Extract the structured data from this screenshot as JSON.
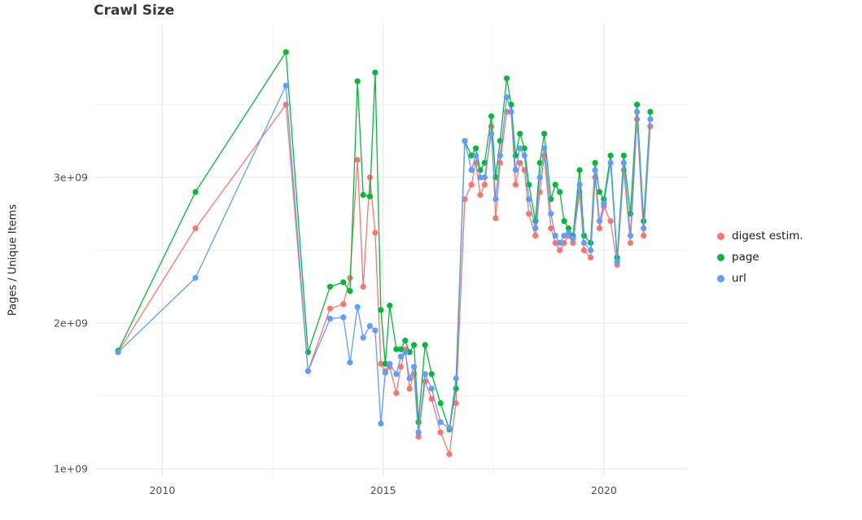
{
  "chart_data": {
    "type": "line",
    "title": "Crawl Size",
    "xlabel": "",
    "ylabel": "Pages / Unique Items",
    "legend_position": "right",
    "grid": "major-and-minor",
    "xlim": [
      2008.5,
      2021.9
    ],
    "ylim": [
      950000000,
      4050000000
    ],
    "xticks": [
      2010,
      2015,
      2020
    ],
    "xtick_labels": [
      "2010",
      "2015",
      "2020"
    ],
    "xticks_minor": [
      2012.5,
      2017.5
    ],
    "yticks": [
      1000000000,
      2000000000,
      3000000000
    ],
    "ytick_labels": [
      "1e+09",
      "2e+09",
      "3e+09"
    ],
    "yticks_minor": [
      1500000000,
      2500000000,
      3500000000
    ],
    "x": [
      2009.0,
      2010.75,
      2012.8,
      2013.3,
      2013.8,
      2014.1,
      2014.25,
      2014.42,
      2014.55,
      2014.7,
      2014.82,
      2014.95,
      2015.05,
      2015.15,
      2015.3,
      2015.4,
      2015.5,
      2015.6,
      2015.7,
      2015.8,
      2015.95,
      2016.1,
      2016.3,
      2016.5,
      2016.65,
      2016.85,
      2017.0,
      2017.1,
      2017.2,
      2017.3,
      2017.45,
      2017.55,
      2017.65,
      2017.8,
      2017.9,
      2018.0,
      2018.1,
      2018.2,
      2018.3,
      2018.45,
      2018.55,
      2018.65,
      2018.8,
      2018.9,
      2019.0,
      2019.1,
      2019.2,
      2019.3,
      2019.45,
      2019.55,
      2019.7,
      2019.8,
      2019.9,
      2020.0,
      2020.15,
      2020.3,
      2020.45,
      2020.6,
      2020.75,
      2020.9,
      2021.05
    ],
    "series": [
      {
        "name": "digest estim.",
        "color": "#F8766D",
        "values": [
          1800000000.0,
          2650000000.0,
          3500000000.0,
          1670000000.0,
          2100000000.0,
          2130000000.0,
          2310000000.0,
          3120000000.0,
          2250000000.0,
          3000000000.0,
          2620000000.0,
          1720000000.0,
          1670000000.0,
          1700000000.0,
          1520000000.0,
          1700000000.0,
          1820000000.0,
          1550000000.0,
          1650000000.0,
          1220000000.0,
          1600000000.0,
          1480000000.0,
          1250000000.0,
          1100000000.0,
          1450000000.0,
          2850000000.0,
          2950000000.0,
          3100000000.0,
          2880000000.0,
          2950000000.0,
          3350000000.0,
          2720000000.0,
          3100000000.0,
          3450000000.0,
          3450000000.0,
          2950000000.0,
          3100000000.0,
          3050000000.0,
          2750000000.0,
          2600000000.0,
          2900000000.0,
          3150000000.0,
          2650000000.0,
          2550000000.0,
          2500000000.0,
          2550000000.0,
          2600000000.0,
          2550000000.0,
          2900000000.0,
          2500000000.0,
          2450000000.0,
          3000000000.0,
          2650000000.0,
          2800000000.0,
          2700000000.0,
          2400000000.0,
          3050000000.0,
          2550000000.0,
          3400000000.0,
          2600000000.0,
          3350000000.0
        ]
      },
      {
        "name": "page",
        "color": "#00BA38",
        "values": [
          1810000000.0,
          2900000000.0,
          3860000000.0,
          1800000000.0,
          2250000000.0,
          2280000000.0,
          2220000000.0,
          3660000000.0,
          2880000000.0,
          2870000000.0,
          3720000000.0,
          2090000000.0,
          1720000000.0,
          2120000000.0,
          1820000000.0,
          1820000000.0,
          1880000000.0,
          1800000000.0,
          1850000000.0,
          1320000000.0,
          1850000000.0,
          1650000000.0,
          1450000000.0,
          1270000000.0,
          1550000000.0,
          3250000000.0,
          3150000000.0,
          3200000000.0,
          3050000000.0,
          3100000000.0,
          3420000000.0,
          3000000000.0,
          3250000000.0,
          3680000000.0,
          3500000000.0,
          3150000000.0,
          3300000000.0,
          3200000000.0,
          2950000000.0,
          2700000000.0,
          3100000000.0,
          3300000000.0,
          2850000000.0,
          2950000000.0,
          2900000000.0,
          2700000000.0,
          2650000000.0,
          2600000000.0,
          3050000000.0,
          2600000000.0,
          2550000000.0,
          3100000000.0,
          2900000000.0,
          2850000000.0,
          3150000000.0,
          2450000000.0,
          3150000000.0,
          2750000000.0,
          3500000000.0,
          2700000000.0,
          3450000000.0
        ]
      },
      {
        "name": "url",
        "color": "#619CFF",
        "values": [
          1800000000.0,
          2310000000.0,
          3630000000.0,
          1670000000.0,
          2030000000.0,
          2040000000.0,
          1730000000.0,
          2110000000.0,
          1900000000.0,
          1980000000.0,
          1950000000.0,
          1310000000.0,
          1660000000.0,
          1720000000.0,
          1650000000.0,
          1770000000.0,
          1800000000.0,
          1620000000.0,
          1700000000.0,
          1250000000.0,
          1650000000.0,
          1550000000.0,
          1320000000.0,
          1280000000.0,
          1620000000.0,
          3250000000.0,
          3050000000.0,
          3150000000.0,
          3000000000.0,
          3000000000.0,
          3300000000.0,
          2850000000.0,
          3150000000.0,
          3550000000.0,
          3450000000.0,
          3050000000.0,
          3200000000.0,
          3150000000.0,
          2850000000.0,
          2650000000.0,
          3000000000.0,
          3200000000.0,
          2750000000.0,
          2600000000.0,
          2550000000.0,
          2600000000.0,
          2620000000.0,
          2580000000.0,
          2950000000.0,
          2550000000.0,
          2500000000.0,
          3050000000.0,
          2700000000.0,
          2820000000.0,
          3100000000.0,
          2420000000.0,
          3100000000.0,
          2600000000.0,
          3450000000.0,
          2650000000.0,
          3400000000.0
        ]
      }
    ]
  }
}
